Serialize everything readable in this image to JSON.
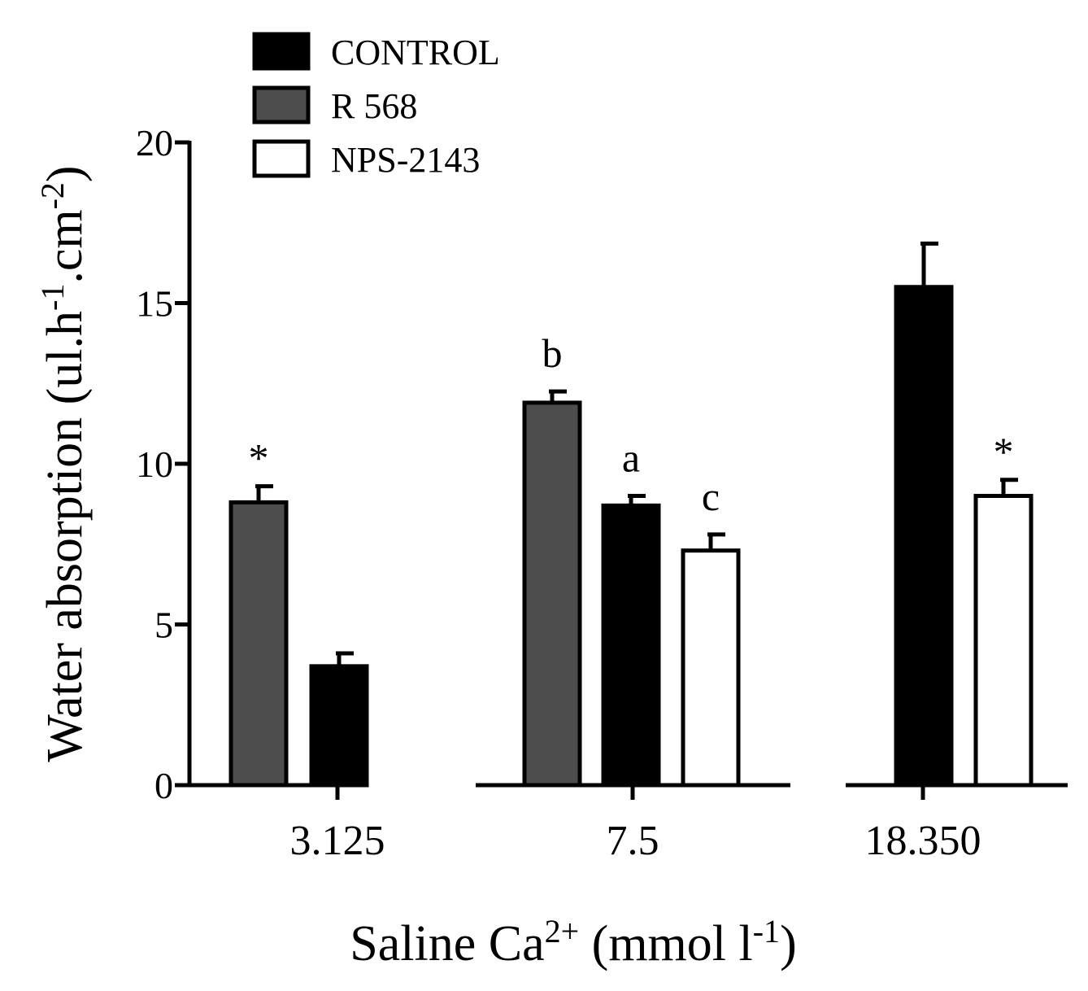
{
  "chart_data": {
    "type": "bar",
    "ylabel_main": "Water absorption (ul.h",
    "ylabel_sup1": "-1",
    "ylabel_mid": ".cm",
    "ylabel_sup2": "-2",
    "ylabel_end": ")",
    "xlabel_main": "Saline Ca",
    "xlabel_sup1": "2+",
    "xlabel_mid": " (mmol l",
    "xlabel_sup2": "-1",
    "xlabel_end": ")",
    "ylim": [
      0,
      20
    ],
    "yticks": [
      0,
      5,
      10,
      15,
      20
    ],
    "legend": [
      {
        "name": "CONTROL",
        "color": "#000000"
      },
      {
        "name": "R 568",
        "color": "#4d4d4d"
      },
      {
        "name": "NPS-2143",
        "color": "#ffffff"
      }
    ],
    "groups": [
      {
        "label": "3.125",
        "bars": [
          {
            "series": "R 568",
            "value": 8.8,
            "error": 0.5,
            "annotation": "*"
          },
          {
            "series": "CONTROL",
            "value": 3.7,
            "error": 0.4,
            "annotation": ""
          }
        ]
      },
      {
        "label": "7.5",
        "bars": [
          {
            "series": "R 568",
            "value": 11.9,
            "error": 0.35,
            "annotation": "b"
          },
          {
            "series": "CONTROL",
            "value": 8.7,
            "error": 0.3,
            "annotation": "a"
          },
          {
            "series": "NPS-2143",
            "value": 7.3,
            "error": 0.5,
            "annotation": "c"
          }
        ]
      },
      {
        "label": "18.350",
        "bars": [
          {
            "series": "CONTROL",
            "value": 15.5,
            "error": 1.35,
            "annotation": ""
          },
          {
            "series": "NPS-2143",
            "value": 9.0,
            "error": 0.5,
            "annotation": "*"
          }
        ]
      }
    ]
  }
}
